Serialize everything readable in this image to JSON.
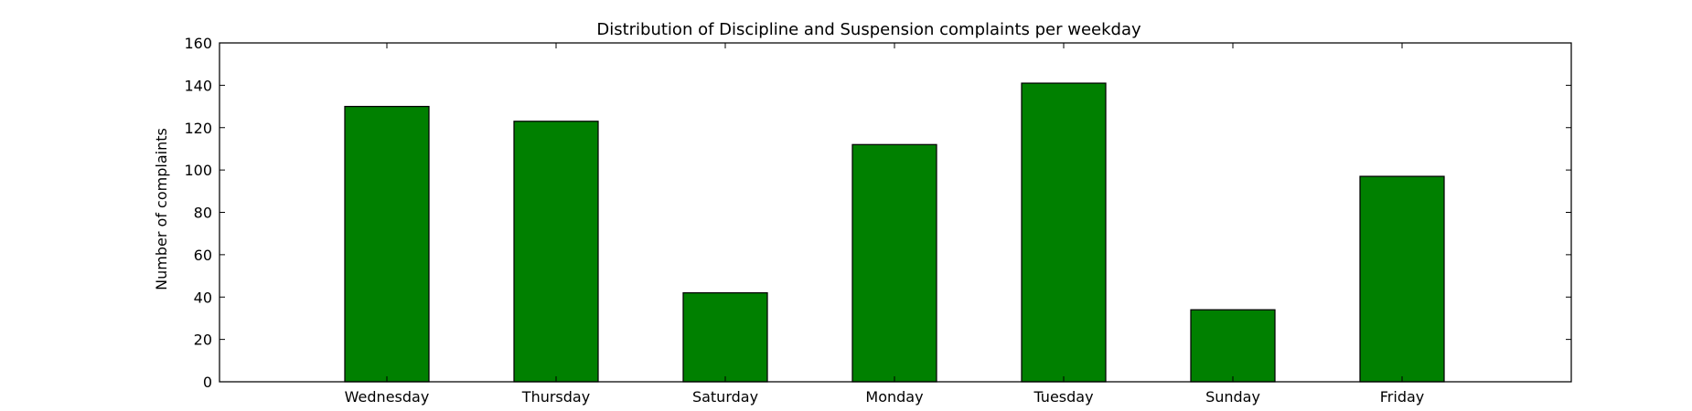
{
  "chart_data": {
    "type": "bar",
    "title": "Distribution of  Discipline and Suspension complaints per weekday",
    "xlabel": "",
    "ylabel": "Number of complaints",
    "categories": [
      "Wednesday",
      "Thursday",
      "Saturday",
      "Monday",
      "Tuesday",
      "Sunday",
      "Friday"
    ],
    "values": [
      130,
      123,
      42,
      112,
      141,
      34,
      97
    ],
    "ylim": [
      0,
      160
    ],
    "yticks": [
      0,
      20,
      40,
      60,
      80,
      100,
      120,
      140,
      160
    ],
    "ytick_labels": [
      "0",
      "20",
      "40",
      "60",
      "80",
      "100",
      "120",
      "140",
      "160"
    ],
    "grid": false,
    "legend": "none",
    "colors": {
      "bar_fill": "#008000",
      "bar_edge": "#000000",
      "axes": "#000000",
      "background": "#ffffff"
    }
  }
}
